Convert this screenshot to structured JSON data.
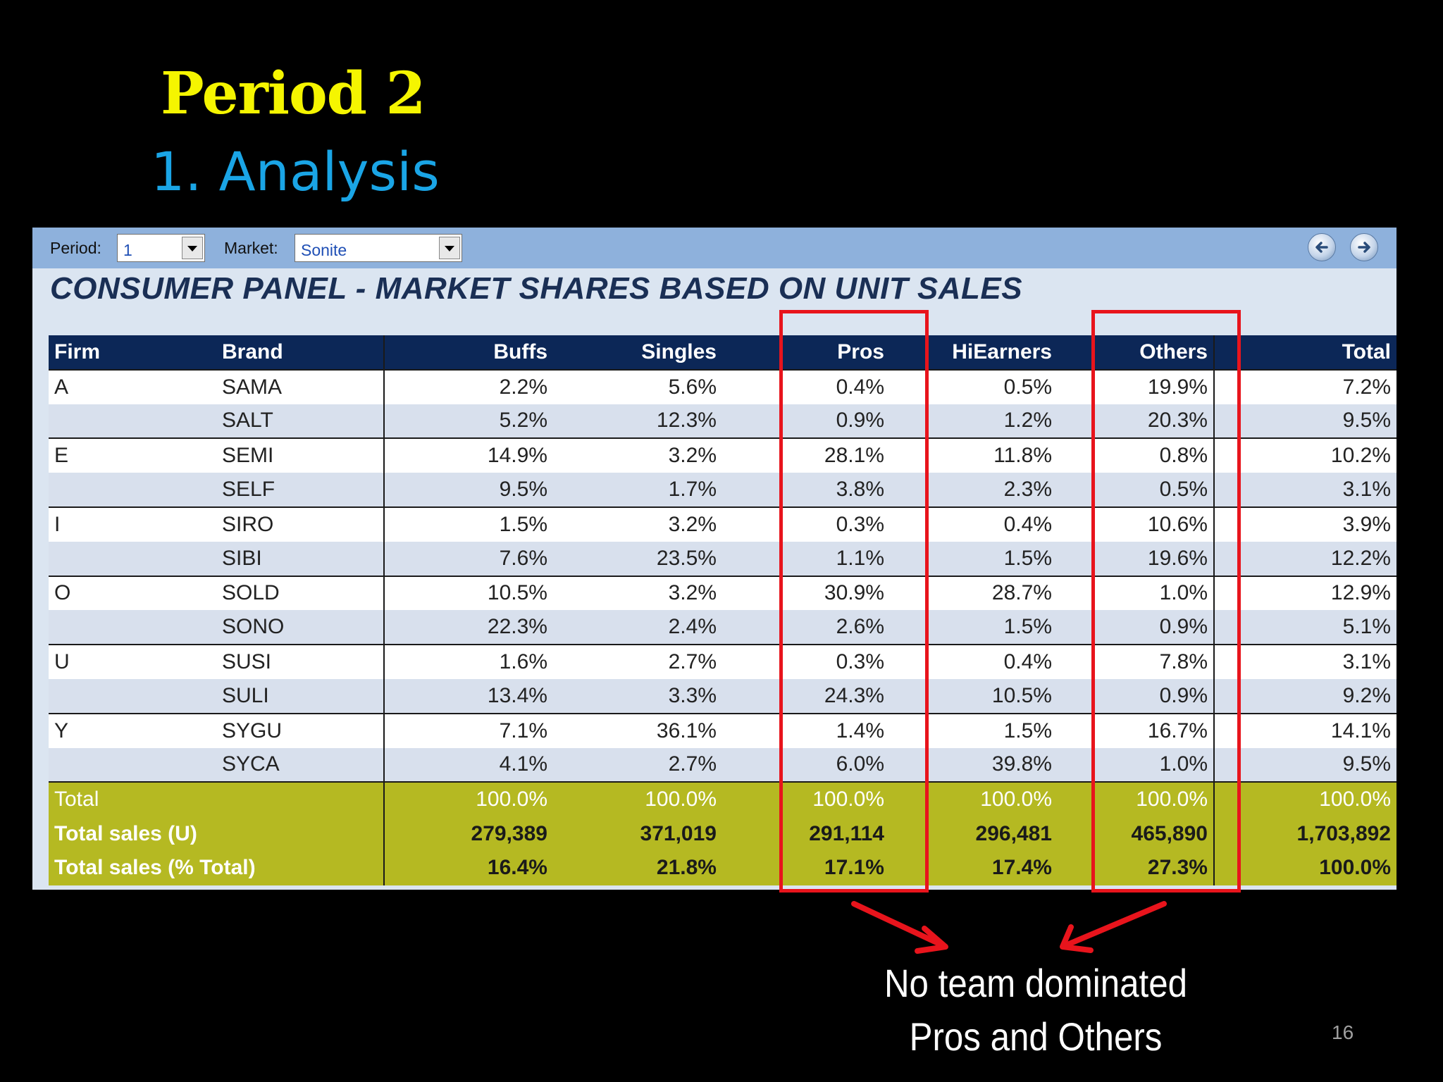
{
  "slide": {
    "title": "Period 2",
    "subtitle": "1. Analysis",
    "page_number": "16",
    "annotation": [
      "No team dominated",
      "Pros and Others"
    ]
  },
  "toolbar": {
    "period_label": "Period:",
    "period_value": "1",
    "market_label": "Market:",
    "market_value": "Sonite"
  },
  "panel": {
    "heading": "CONSUMER PANEL - MARKET SHARES BASED ON UNIT SALES"
  },
  "table": {
    "headers": [
      "Firm",
      "Brand",
      "Buffs",
      "Singles",
      "Pros",
      "HiEarners",
      "Others",
      "Total"
    ],
    "rows": [
      [
        "A",
        "SAMA",
        "2.2%",
        "5.6%",
        "0.4%",
        "0.5%",
        "19.9%",
        "7.2%"
      ],
      [
        "",
        "SALT",
        "5.2%",
        "12.3%",
        "0.9%",
        "1.2%",
        "20.3%",
        "9.5%"
      ],
      [
        "E",
        "SEMI",
        "14.9%",
        "3.2%",
        "28.1%",
        "11.8%",
        "0.8%",
        "10.2%"
      ],
      [
        "",
        "SELF",
        "9.5%",
        "1.7%",
        "3.8%",
        "2.3%",
        "0.5%",
        "3.1%"
      ],
      [
        "I",
        "SIRO",
        "1.5%",
        "3.2%",
        "0.3%",
        "0.4%",
        "10.6%",
        "3.9%"
      ],
      [
        "",
        "SIBI",
        "7.6%",
        "23.5%",
        "1.1%",
        "1.5%",
        "19.6%",
        "12.2%"
      ],
      [
        "O",
        "SOLD",
        "10.5%",
        "3.2%",
        "30.9%",
        "28.7%",
        "1.0%",
        "12.9%"
      ],
      [
        "",
        "SONO",
        "22.3%",
        "2.4%",
        "2.6%",
        "1.5%",
        "0.9%",
        "5.1%"
      ],
      [
        "U",
        "SUSI",
        "1.6%",
        "2.7%",
        "0.3%",
        "0.4%",
        "7.8%",
        "3.1%"
      ],
      [
        "",
        "SULI",
        "13.4%",
        "3.3%",
        "24.3%",
        "10.5%",
        "0.9%",
        "9.2%"
      ],
      [
        "Y",
        "SYGU",
        "7.1%",
        "36.1%",
        "1.4%",
        "1.5%",
        "16.7%",
        "14.1%"
      ],
      [
        "",
        "SYCA",
        "4.1%",
        "2.7%",
        "6.0%",
        "39.8%",
        "1.0%",
        "9.5%"
      ]
    ],
    "totals": [
      {
        "label": "Total",
        "values": [
          "100.0%",
          "100.0%",
          "100.0%",
          "100.0%",
          "100.0%",
          "100.0%"
        ]
      },
      {
        "label": "Total sales (U)",
        "values": [
          "279,389",
          "371,019",
          "291,114",
          "296,481",
          "465,890",
          "1,703,892"
        ]
      },
      {
        "label": "Total sales (% Total)",
        "values": [
          "16.4%",
          "21.8%",
          "17.1%",
          "17.4%",
          "27.3%",
          "100.0%"
        ]
      }
    ]
  },
  "colors": {
    "title": "#f5f500",
    "subtitle": "#1aa5e6",
    "header_bg": "#0c2757",
    "totals_bg": "#b5b922",
    "highlight": "#e8141c"
  }
}
